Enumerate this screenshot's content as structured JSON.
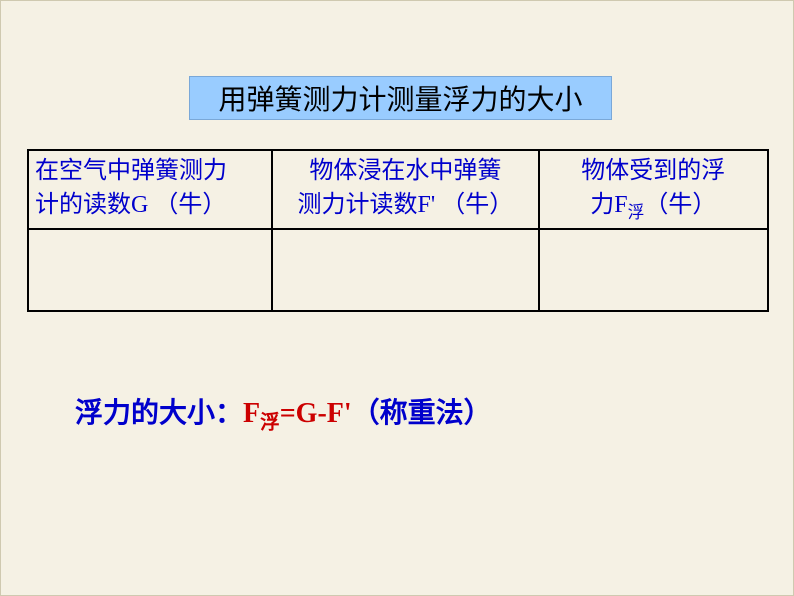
{
  "title": "用弹簧测力计测量浮力的大小",
  "table": {
    "headers": {
      "col1_line1": "在空气中弹簧测力",
      "col1_line2": "计的读数G （牛）",
      "col2_line1": "物体浸在水中弹簧",
      "col2_line2": "测力计读数F' （牛）",
      "col3_line1": "物体受到的浮",
      "col3_line2a": "力F",
      "col3_line2b": "浮",
      "col3_line2c": "（牛）"
    }
  },
  "formula": {
    "label": "浮力的大小：",
    "eq_part1": "F",
    "eq_sub": "浮",
    "eq_part2": "=G-F'",
    "note": "（称重法）"
  },
  "colors": {
    "page_bg": "#f5f1e4",
    "title_bg": "#99ccff",
    "header_text": "#0000cc",
    "formula_label": "#0000cc",
    "formula_eq": "#cc0000",
    "table_border": "#000000"
  }
}
